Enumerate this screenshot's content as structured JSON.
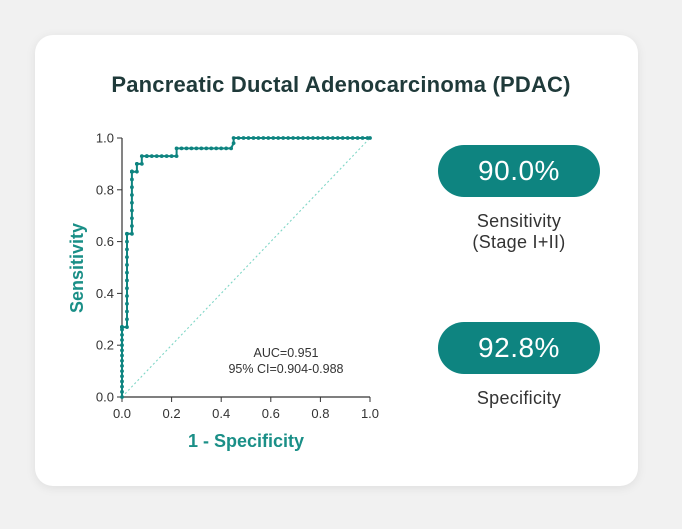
{
  "title": "Pancreatic Ductal Adenocarcinoma (PDAC)",
  "colors": {
    "accent": "#0e8480",
    "roc_line": "#0e8480",
    "diagonal": "#7fd6c6",
    "axis_text": "#333333",
    "axis_title": "#1a8f87"
  },
  "metrics": [
    {
      "value": "90.0%",
      "label_line1": "Sensitivity",
      "label_line2": "(Stage I+II)"
    },
    {
      "value": "92.8%",
      "label_line1": "Specificity",
      "label_line2": ""
    }
  ],
  "chart_data": {
    "type": "line",
    "title": "",
    "xlabel": "1 - Specificity",
    "ylabel": "Sensitivity",
    "xlim": [
      0,
      1
    ],
    "ylim": [
      0,
      1
    ],
    "x_ticks": [
      "0.0",
      "0.2",
      "0.4",
      "0.6",
      "0.8",
      "1.0"
    ],
    "y_ticks": [
      "0.0",
      "0.2",
      "0.4",
      "0.6",
      "0.8",
      "1.0"
    ],
    "annotations": [
      "AUC=0.951",
      "95% CI=0.904-0.988"
    ],
    "reference_line": {
      "style": "dotted",
      "x": [
        0,
        1
      ],
      "y": [
        0,
        1
      ]
    },
    "series": [
      {
        "x": [
          0,
          0,
          0,
          0,
          0,
          0,
          0,
          0,
          0,
          0,
          0,
          0,
          0,
          0,
          0,
          0,
          0,
          0,
          0,
          0,
          0.02,
          0.02,
          0.02,
          0.02,
          0.02,
          0.02,
          0.02,
          0.02,
          0.02,
          0.02,
          0.02,
          0.02,
          0.02,
          0.02,
          0.04,
          0.04,
          0.04,
          0.04,
          0.04,
          0.04,
          0.04,
          0.04,
          0.04,
          0.04,
          0.04,
          0.04,
          0.04,
          0.04,
          0.04,
          0.06,
          0.06,
          0.06,
          0.08,
          0.08,
          0.1,
          0.1,
          0.12,
          0.14,
          0.16,
          0.18,
          0.2,
          0.22,
          0.22,
          0.24,
          0.26,
          0.28,
          0.3,
          0.32,
          0.34,
          0.36,
          0.38,
          0.4,
          0.42,
          0.44,
          0.45,
          0.45,
          0.47,
          0.49,
          0.51,
          0.53,
          0.55,
          0.57,
          0.59,
          0.61,
          0.63,
          0.65,
          0.67,
          0.69,
          0.71,
          0.73,
          0.75,
          0.77,
          0.79,
          0.81,
          0.83,
          0.85,
          0.87,
          0.89,
          0.91,
          0.93,
          0.95,
          0.97,
          0.99,
          1.0
        ],
        "y": [
          0,
          0.02,
          0.04,
          0.06,
          0.08,
          0.1,
          0.12,
          0.14,
          0.16,
          0.18,
          0.2,
          0.22,
          0.24,
          0.26,
          0.27,
          0.27,
          0.27,
          0.27,
          0.27,
          0.27,
          0.27,
          0.3,
          0.33,
          0.36,
          0.39,
          0.42,
          0.45,
          0.48,
          0.51,
          0.54,
          0.57,
          0.6,
          0.63,
          0.63,
          0.63,
          0.66,
          0.69,
          0.72,
          0.75,
          0.78,
          0.81,
          0.84,
          0.87,
          0.87,
          0.87,
          0.87,
          0.87,
          0.87,
          0.87,
          0.87,
          0.9,
          0.9,
          0.9,
          0.93,
          0.93,
          0.93,
          0.93,
          0.93,
          0.93,
          0.93,
          0.93,
          0.93,
          0.96,
          0.96,
          0.96,
          0.96,
          0.96,
          0.96,
          0.96,
          0.96,
          0.96,
          0.96,
          0.96,
          0.96,
          0.98,
          1.0,
          1.0,
          1.0,
          1.0,
          1.0,
          1.0,
          1.0,
          1.0,
          1.0,
          1.0,
          1.0,
          1.0,
          1.0,
          1.0,
          1.0,
          1.0,
          1.0,
          1.0,
          1.0,
          1.0,
          1.0,
          1.0,
          1.0,
          1.0,
          1.0,
          1.0,
          1.0,
          1.0,
          1.0
        ]
      }
    ]
  }
}
